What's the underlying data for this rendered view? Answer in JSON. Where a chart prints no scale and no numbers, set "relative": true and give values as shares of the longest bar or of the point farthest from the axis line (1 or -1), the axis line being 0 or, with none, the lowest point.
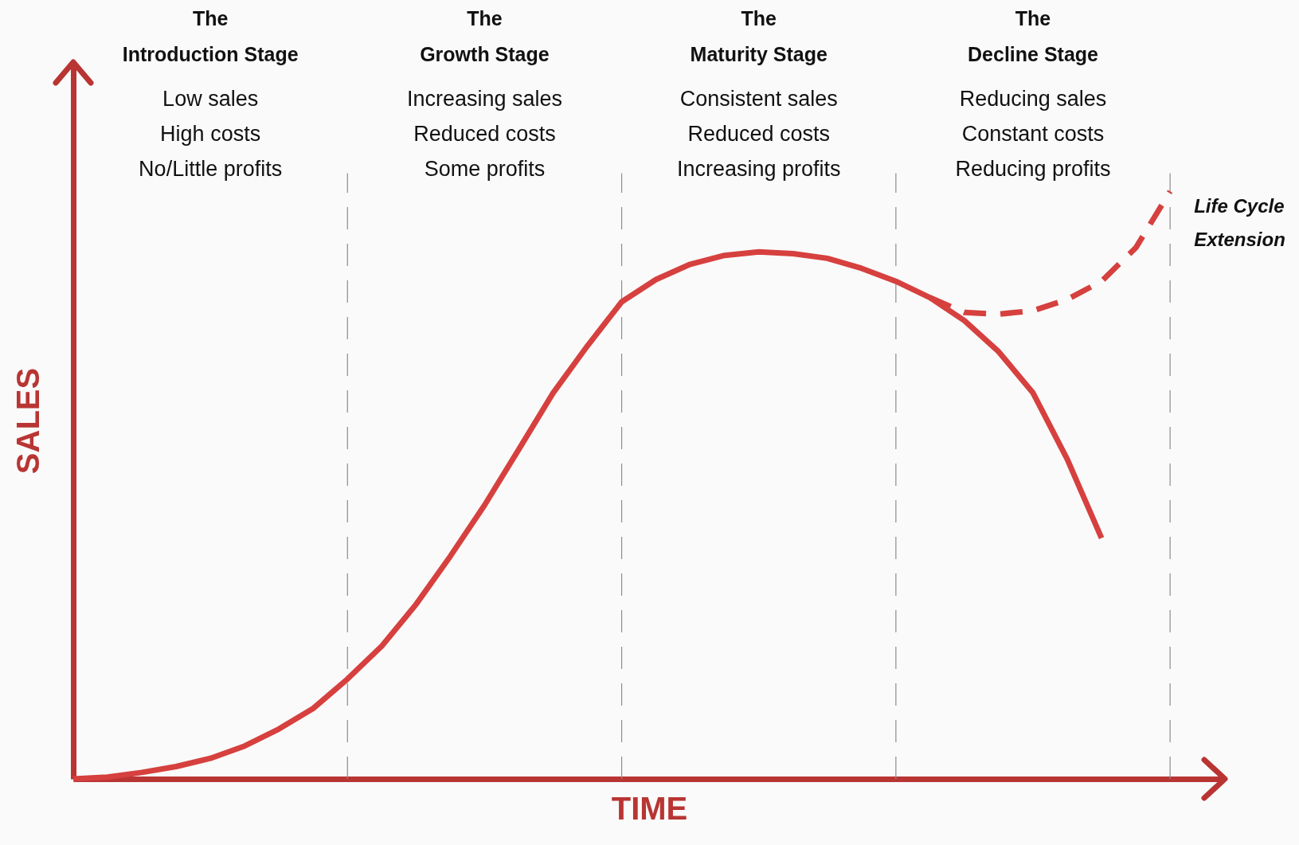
{
  "chart_data": {
    "type": "line",
    "relative": true,
    "grid": "x",
    "xlabel": "TIME",
    "ylabel": "SALES",
    "categories": [
      null,
      null,
      null,
      null,
      null,
      null,
      null,
      null,
      null,
      null,
      null,
      null,
      null,
      null,
      null,
      null,
      null,
      null,
      null,
      null,
      null,
      null,
      null,
      null,
      null,
      null,
      null,
      null,
      null,
      null,
      null,
      null,
      null
    ],
    "annotations": [
      "The\nIntroduction Stage",
      "Low sales\nHigh costs\nNo/Little profits",
      "The\nGrowth Stage",
      "Increasing sales\nReduced costs\nSome profits",
      "The\nMaturity Stage",
      "Consistent sales\nReduced costs\nIncreasing profits",
      "The\nDecline Stage",
      "Reducing sales\nConstant costs\nReducing profits",
      "Life Cycle\nExtension"
    ],
    "ref_lines": [
      {
        "axis": "x",
        "color": "#8c8c8c",
        "line_style": "dashed"
      },
      {
        "axis": "x",
        "color": "#8c8c8c",
        "line_style": "dashed"
      },
      {
        "axis": "x",
        "color": "#8c8c8c",
        "line_style": "dashed"
      },
      {
        "axis": "x",
        "color": "#8c8c8c",
        "line_style": "dashed"
      }
    ],
    "series": [
      {
        "color": "#d6403e",
        "line_style": "solid",
        "values": [
          0,
          0.003,
          0.011,
          0.021,
          0.035,
          0.056,
          0.085,
          0.12,
          0.17,
          0.226,
          0.297,
          0.379,
          0.466,
          0.561,
          0.657,
          0.737,
          0.812,
          0.85,
          0.876,
          0.891,
          0.897,
          0.894,
          0.886,
          0.869,
          0.847,
          0.819,
          0.78,
          0.727,
          0.657,
          0.544,
          0.41,
          null,
          null
        ]
      },
      {
        "color": "#d6403e",
        "line_style": "dashed",
        "values": [
          null,
          null,
          null,
          null,
          null,
          null,
          null,
          null,
          null,
          null,
          null,
          null,
          null,
          null,
          null,
          null,
          null,
          null,
          null,
          null,
          null,
          null,
          null,
          null,
          null,
          0.819,
          0.794,
          0.791,
          0.797,
          0.816,
          0.847,
          0.904,
          1.0
        ]
      }
    ]
  }
}
